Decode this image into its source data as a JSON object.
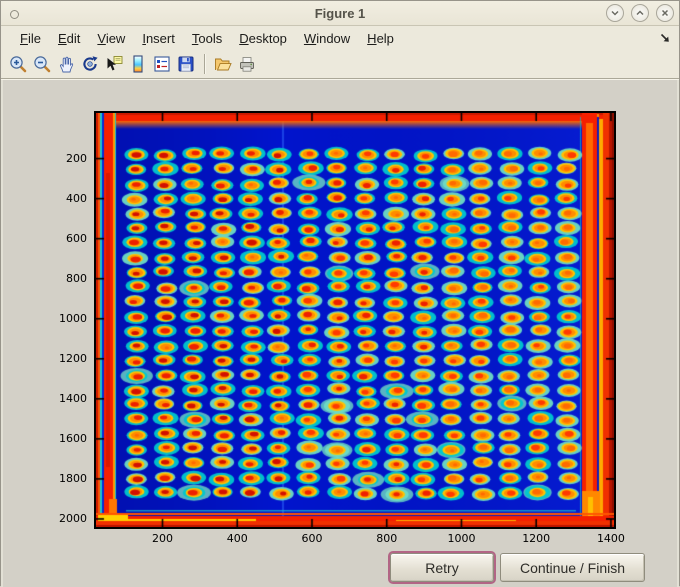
{
  "window": {
    "title": "Figure 1",
    "controls": [
      {
        "name": "minimize"
      },
      {
        "name": "maximize"
      },
      {
        "name": "close"
      }
    ]
  },
  "menubar": {
    "items": [
      {
        "label": "File"
      },
      {
        "label": "Edit"
      },
      {
        "label": "View"
      },
      {
        "label": "Insert"
      },
      {
        "label": "Tools"
      },
      {
        "label": "Desktop"
      },
      {
        "label": "Window"
      },
      {
        "label": "Help"
      }
    ]
  },
  "toolbar": {
    "tools": [
      "zoom-in",
      "zoom-out",
      "pan",
      "rotate-3d",
      "data-cursor",
      "insert-colorbar",
      "insert-legend",
      "save-figure",
      "open-file",
      "print-figure"
    ]
  },
  "figure": {
    "retry_label": "Retry",
    "continue_label": "Continue / Finish"
  },
  "chart_data": {
    "type": "heatmap",
    "title": "",
    "xlabel": "",
    "ylabel": "",
    "x_ticks": [
      200,
      400,
      600,
      800,
      1000,
      1200,
      1400
    ],
    "y_ticks": [
      200,
      400,
      600,
      800,
      1000,
      1200,
      1400,
      1600,
      1800,
      2000
    ],
    "x_range": [
      0,
      1450
    ],
    "y_range": [
      0,
      2050
    ],
    "y_direction": "down",
    "colormap": "jet",
    "legend": "none",
    "grid_lines": "off",
    "description": "Pseudocolor (jet colormap) scan of a spotted array plate: 16 columns x 24 rows of spots with hot red/orange cores surrounded by yellow rings and cyan halos on a deep-blue background; plate edges saturate to red/orange with thin cyan streaks.",
    "grid": {
      "cols": 16,
      "rows": 24,
      "x_start": 130,
      "x_pitch": 77,
      "y_start": 180,
      "y_pitch": 73.5
    },
    "palette": {
      "background": "#0114cd",
      "halo": "#00c8cd",
      "halo_pale": "#6edcc3",
      "ring_yellow": "#ffc400",
      "ring_orange": "#ff8c00",
      "core_dark": "#d21000",
      "core_red": "#ee2000",
      "core_bright": "#ff3a00",
      "core_light": "#ff6a00",
      "edge_red": "#f52000",
      "edge_dark_red": "#b81400",
      "edge_orange": "#ff8800",
      "edge_yellow": "#ffd000",
      "edge_cyan": "#18c8d0"
    }
  }
}
